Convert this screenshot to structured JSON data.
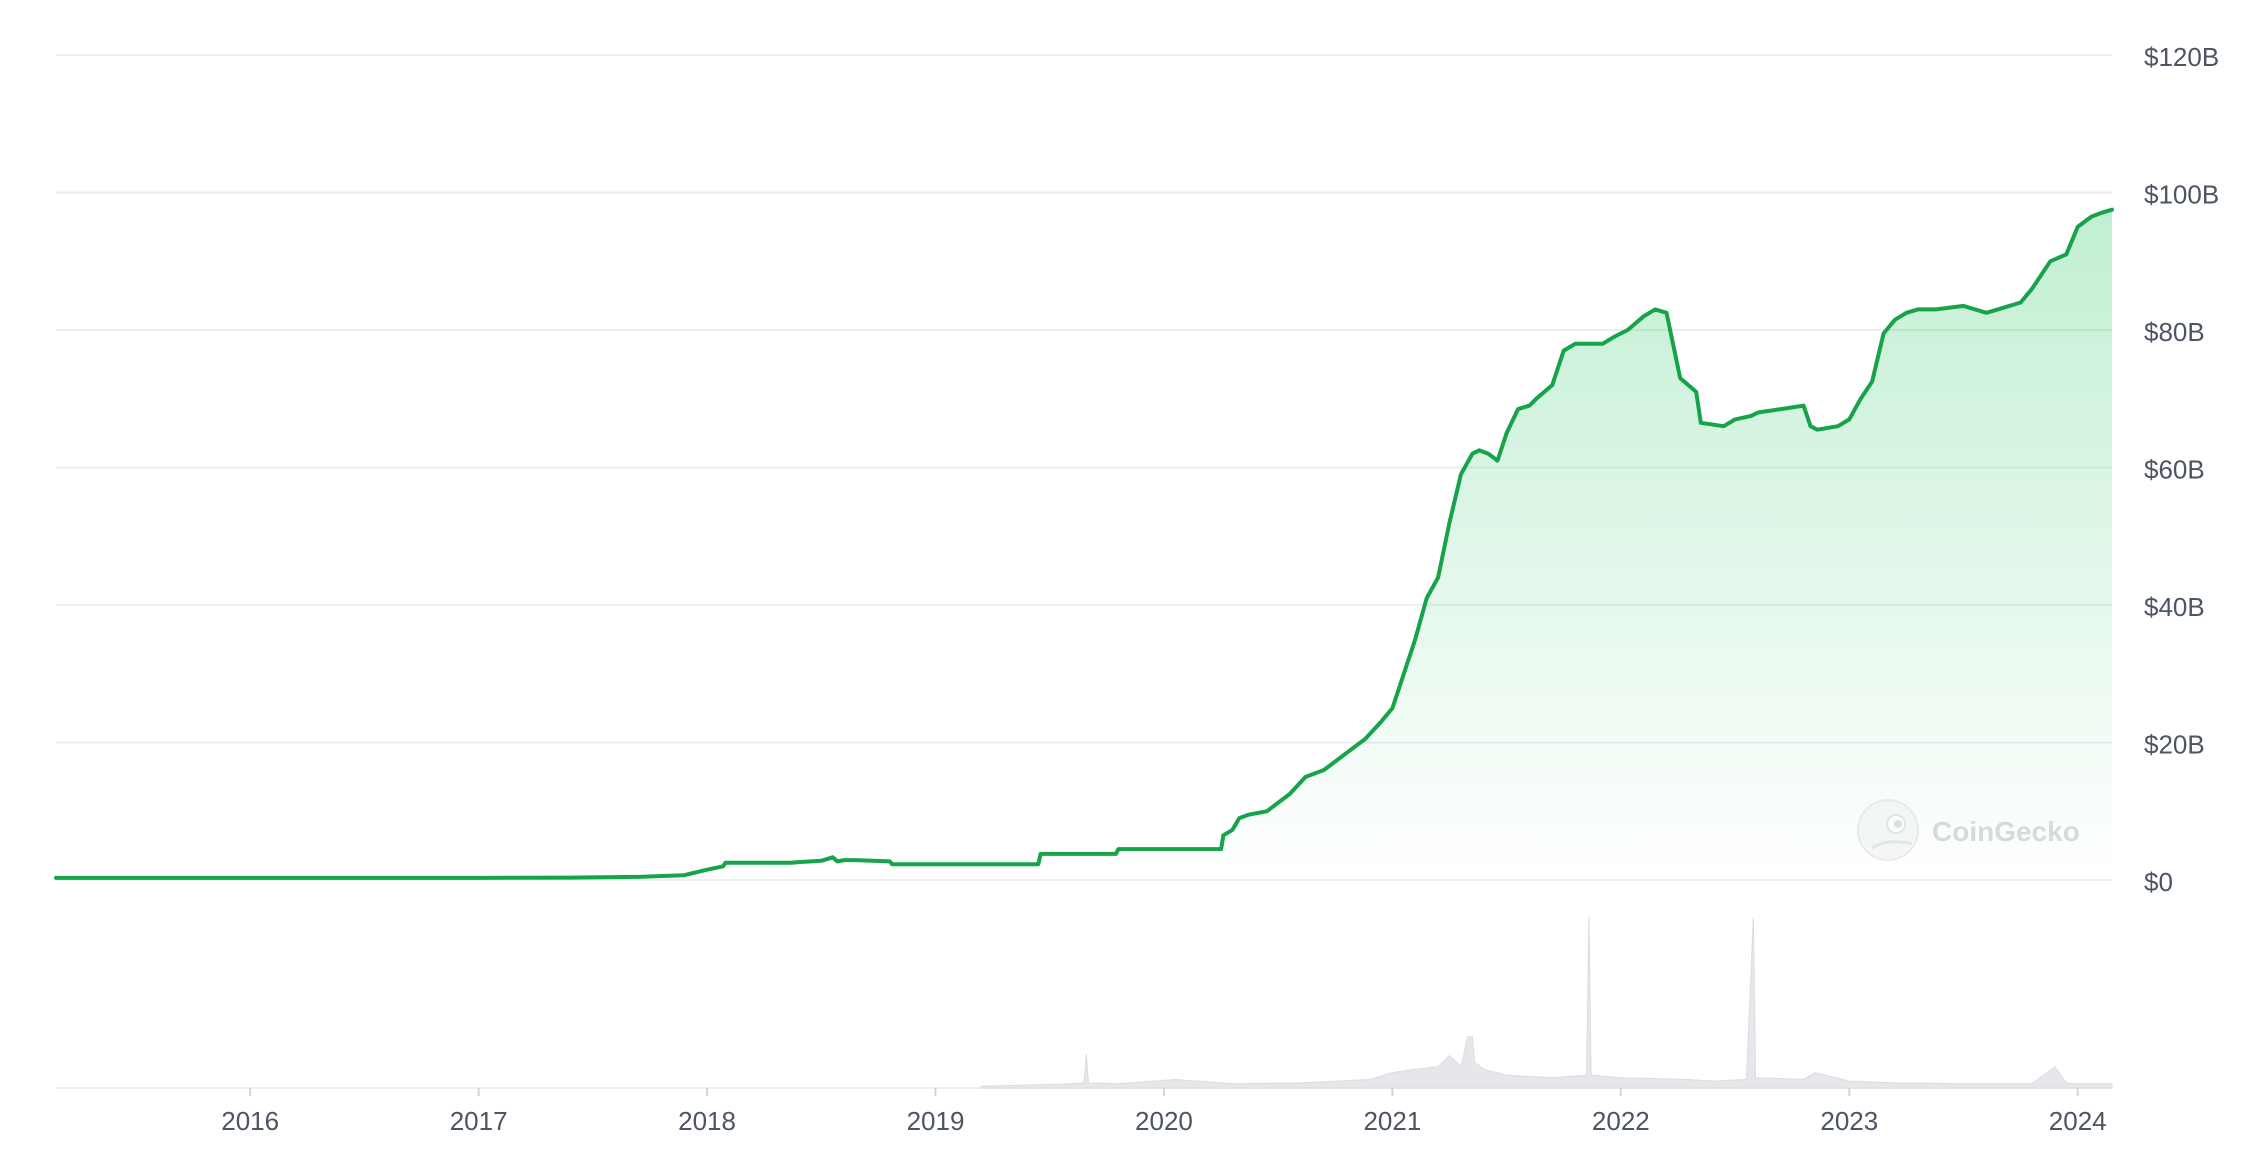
{
  "chart_data": {
    "type": "area",
    "title": "",
    "xlabel": "",
    "ylabel": "",
    "ylim": [
      0,
      120
    ],
    "y_unit": "B USD",
    "y_ticks": [
      {
        "value": 0,
        "label": "$0"
      },
      {
        "value": 20,
        "label": "$20B"
      },
      {
        "value": 40,
        "label": "$40B"
      },
      {
        "value": 60,
        "label": "$60B"
      },
      {
        "value": 80,
        "label": "$80B"
      },
      {
        "value": 100,
        "label": "$100B"
      },
      {
        "value": 120,
        "label": "$120B"
      }
    ],
    "x_range": [
      2015.15,
      2024.15
    ],
    "x_ticks": [
      {
        "value": 2016.0,
        "label": "2016"
      },
      {
        "value": 2017.0,
        "label": "2017"
      },
      {
        "value": 2018.0,
        "label": "2018"
      },
      {
        "value": 2019.0,
        "label": "2019"
      },
      {
        "value": 2020.0,
        "label": "2020"
      },
      {
        "value": 2021.0,
        "label": "2021"
      },
      {
        "value": 2022.0,
        "label": "2022"
      },
      {
        "value": 2023.0,
        "label": "2023"
      },
      {
        "value": 2024.0,
        "label": "2024"
      }
    ],
    "grid": true,
    "line_color": "#16a34a",
    "fill_color": "#22c55e",
    "x": [
      2015.15,
      2016.0,
      2017.0,
      2017.4,
      2017.7,
      2017.9,
      2018.0,
      2018.07,
      2018.08,
      2018.3,
      2018.37,
      2018.4,
      2018.5,
      2018.55,
      2018.57,
      2018.6,
      2018.65,
      2018.8,
      2018.81,
      2019.0,
      2019.45,
      2019.46,
      2019.79,
      2019.8,
      2020.25,
      2020.26,
      2020.3,
      2020.33,
      2020.37,
      2020.45,
      2020.55,
      2020.62,
      2020.7,
      2020.8,
      2020.88,
      2020.95,
      2021.0,
      2021.02,
      2021.1,
      2021.15,
      2021.2,
      2021.25,
      2021.3,
      2021.35,
      2021.38,
      2021.42,
      2021.46,
      2021.5,
      2021.55,
      2021.6,
      2021.63,
      2021.7,
      2021.75,
      2021.8,
      2021.87,
      2021.92,
      2021.97,
      2022.03,
      2022.1,
      2022.15,
      2022.2,
      2022.26,
      2022.33,
      2022.35,
      2022.45,
      2022.5,
      2022.57,
      2022.6,
      2022.7,
      2022.8,
      2022.83,
      2022.86,
      2022.95,
      2023.0,
      2023.05,
      2023.1,
      2023.15,
      2023.2,
      2023.25,
      2023.3,
      2023.38,
      2023.5,
      2023.6,
      2023.65,
      2023.75,
      2023.8,
      2023.88,
      2023.95,
      2024.0,
      2024.06,
      2024.1,
      2024.15
    ],
    "values": [
      0.3,
      0.3,
      0.3,
      0.35,
      0.45,
      0.7,
      1.5,
      2.0,
      2.5,
      2.5,
      2.5,
      2.6,
      2.8,
      3.3,
      2.7,
      2.9,
      2.9,
      2.7,
      2.3,
      2.3,
      2.3,
      3.8,
      3.8,
      4.5,
      4.5,
      6.5,
      7.3,
      9.0,
      9.5,
      10.0,
      12.5,
      15.0,
      16.0,
      18.5,
      20.5,
      23.0,
      25.0,
      27.0,
      35.0,
      41.0,
      44.0,
      52.0,
      59.0,
      62.0,
      62.5,
      62.0,
      61.0,
      65.0,
      68.5,
      69.0,
      70.0,
      72.0,
      77.0,
      78.0,
      78.0,
      78.0,
      79.0,
      80.0,
      82.0,
      83.0,
      82.5,
      73.0,
      71.0,
      66.5,
      66.0,
      67.0,
      67.5,
      68.0,
      68.5,
      69.0,
      66.0,
      65.5,
      66.0,
      67.0,
      70.0,
      72.5,
      79.5,
      81.5,
      82.5,
      83.0,
      83.0,
      83.5,
      82.5,
      83.0,
      84.0,
      86.0,
      90.0,
      91.0,
      95.0,
      96.5,
      97.0,
      97.5
    ],
    "volume": {
      "x": [
        2019.2,
        2019.6,
        2019.65,
        2019.66,
        2019.67,
        2019.8,
        2020.05,
        2020.25,
        2020.3,
        2020.6,
        2020.9,
        2021.0,
        2021.1,
        2021.2,
        2021.25,
        2021.3,
        2021.33,
        2021.35,
        2021.36,
        2021.4,
        2021.5,
        2021.7,
        2021.85,
        2021.86,
        2021.87,
        2022.0,
        2022.3,
        2022.4,
        2022.55,
        2022.58,
        2022.59,
        2022.6,
        2022.8,
        2022.85,
        2023.0,
        2023.2,
        2023.5,
        2023.8,
        2023.9,
        2023.95,
        2024.0,
        2024.15
      ],
      "values": [
        0.2,
        0.5,
        0.6,
        4.0,
        0.6,
        0.5,
        1.0,
        0.6,
        0.5,
        0.6,
        1.0,
        1.8,
        2.2,
        2.5,
        3.8,
        2.5,
        6.0,
        6.0,
        3.0,
        2.2,
        1.5,
        1.2,
        1.5,
        20.0,
        1.5,
        1.2,
        1.0,
        0.8,
        1.0,
        20.0,
        1.0,
        1.2,
        1.0,
        1.8,
        0.8,
        0.6,
        0.5,
        0.5,
        2.5,
        0.6,
        0.5,
        0.5
      ],
      "max": 22.0,
      "color": "#e5e7eb"
    }
  },
  "watermark": {
    "label": "CoinGecko",
    "icon": "gecko-logo-icon"
  }
}
